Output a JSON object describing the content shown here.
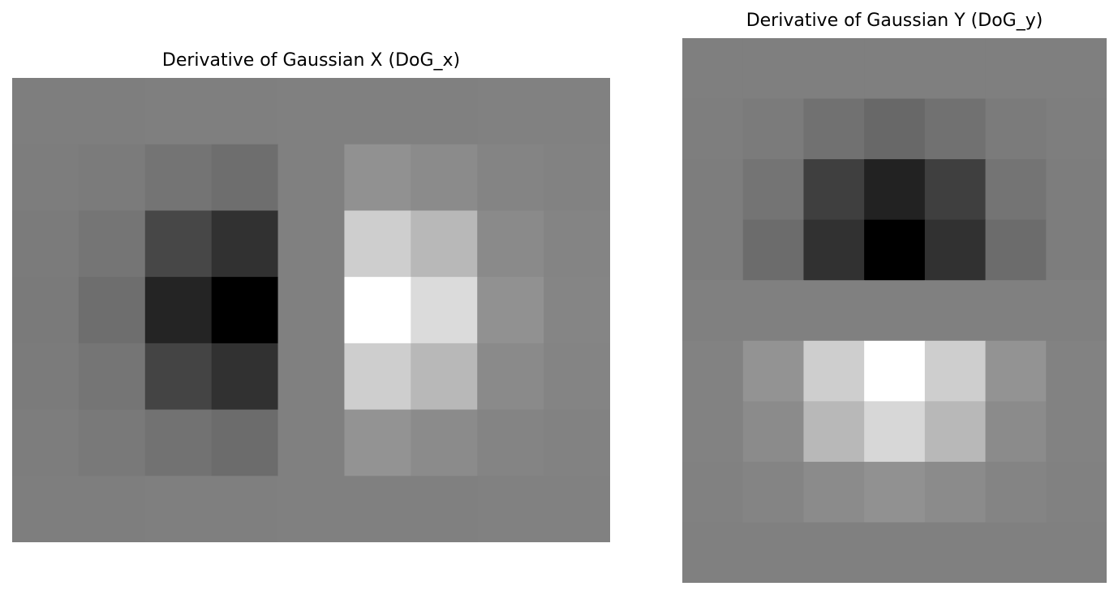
{
  "chart_data": [
    {
      "type": "heatmap",
      "title": "Derivative of Gaussian X (DoG_x)",
      "colormap": "gray",
      "axes_visible": false,
      "grid": false,
      "rows": 7,
      "cols": 9,
      "values": [
        [
          -2,
          -2,
          -1,
          -1,
          0,
          1,
          1,
          2,
          2
        ],
        [
          -3,
          -5,
          -13,
          -20,
          0,
          20,
          13,
          5,
          3
        ],
        [
          -5,
          -12,
          -65,
          -90,
          0,
          90,
          65,
          12,
          5
        ],
        [
          -6,
          -20,
          -105,
          -146,
          0,
          146,
          105,
          20,
          6
        ],
        [
          -5,
          -12,
          -68,
          -90,
          0,
          90,
          65,
          12,
          5
        ],
        [
          -3,
          -8,
          -15,
          -22,
          0,
          22,
          13,
          5,
          3
        ],
        [
          -2,
          -2,
          -1,
          -1,
          0,
          1,
          1,
          2,
          2
        ]
      ],
      "vmin": -146,
      "vmax": 146
    },
    {
      "type": "heatmap",
      "title": "Derivative of Gaussian Y (DoG_y)",
      "colormap": "gray",
      "axes_visible": false,
      "grid": false,
      "rows": 9,
      "cols": 7,
      "values": [
        [
          -1,
          -1,
          -1,
          -1,
          -1,
          -1,
          -1
        ],
        [
          -2,
          -5,
          -17,
          -27,
          -17,
          -5,
          -2
        ],
        [
          -3,
          -13,
          -74,
          -107,
          -74,
          -13,
          -3
        ],
        [
          -3,
          -22,
          -90,
          -146,
          -90,
          -22,
          -3
        ],
        [
          0,
          0,
          0,
          0,
          0,
          0,
          0
        ],
        [
          3,
          22,
          90,
          146,
          90,
          22,
          3
        ],
        [
          3,
          13,
          65,
          100,
          65,
          13,
          3
        ],
        [
          2,
          5,
          13,
          20,
          13,
          5,
          2
        ],
        [
          1,
          1,
          1,
          1,
          1,
          1,
          1
        ]
      ],
      "vmin": -146,
      "vmax": 146
    }
  ]
}
